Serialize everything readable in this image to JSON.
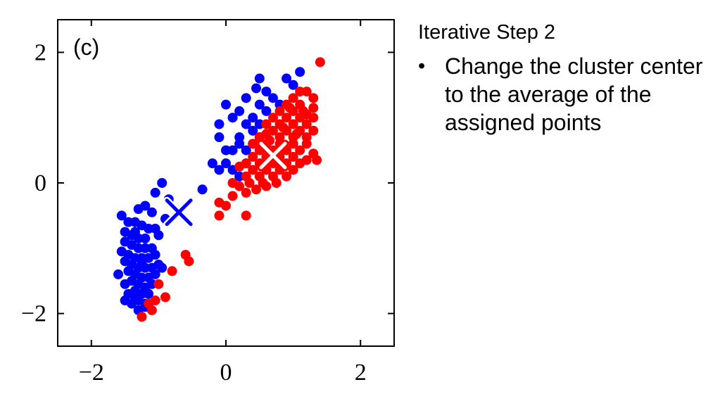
{
  "side": {
    "title": "Iterative Step 2",
    "bullet_marker": "•",
    "bullet_text": "Change the cluster center to the average of the assigned points"
  },
  "chart_data": {
    "type": "scatter",
    "panel_label": "(c)",
    "xlim": [
      -2.5,
      2.5
    ],
    "ylim": [
      -2.5,
      2.5
    ],
    "xticks": [
      -2,
      0,
      2
    ],
    "yticks": [
      -2,
      0,
      2
    ],
    "xtick_labels": [
      "−2",
      "0",
      "2"
    ],
    "ytick_labels": [
      "−2",
      "0",
      "2"
    ],
    "grid": false,
    "series": [
      {
        "color": "#0000ff",
        "points": [
          [
            0.5,
            1.6
          ],
          [
            0.6,
            1.4
          ],
          [
            0.9,
            1.6
          ],
          [
            1.0,
            1.5
          ],
          [
            1.1,
            1.7
          ],
          [
            0.3,
            1.3
          ],
          [
            0.5,
            1.2
          ],
          [
            0.2,
            1.1
          ],
          [
            0.4,
            1.0
          ],
          [
            0.6,
            1.1
          ],
          [
            0.0,
            1.2
          ],
          [
            0.1,
            1.0
          ],
          [
            0.3,
            0.9
          ],
          [
            -0.1,
            0.9
          ],
          [
            0.2,
            0.7
          ],
          [
            0.4,
            0.8
          ],
          [
            0.5,
            0.9
          ],
          [
            0.2,
            0.6
          ],
          [
            0.3,
            0.5
          ],
          [
            0.1,
            0.5
          ],
          [
            0.0,
            0.5
          ],
          [
            -0.1,
            0.7
          ],
          [
            0.4,
            0.6
          ],
          [
            0.5,
            0.7
          ],
          [
            -0.2,
            0.3
          ],
          [
            0.0,
            0.3
          ],
          [
            0.1,
            0.2
          ],
          [
            0.2,
            0.1
          ],
          [
            -0.1,
            0.2
          ],
          [
            0.3,
            0.3
          ],
          [
            0.7,
            1.3
          ],
          [
            0.8,
            1.2
          ],
          [
            0.45,
            1.45
          ],
          [
            -0.35,
            -0.1
          ],
          [
            -0.95,
            0.0
          ],
          [
            -1.05,
            -0.15
          ],
          [
            -0.85,
            -0.25
          ],
          [
            -1.2,
            -0.35
          ],
          [
            -1.3,
            -0.4
          ],
          [
            -1.1,
            -0.45
          ],
          [
            -1.55,
            -0.5
          ],
          [
            -0.9,
            -0.55
          ],
          [
            -1.45,
            -0.6
          ],
          [
            -1.35,
            -0.6
          ],
          [
            -1.25,
            -0.65
          ],
          [
            -1.15,
            -0.7
          ],
          [
            -1.05,
            -0.7
          ],
          [
            -1.5,
            -0.75
          ],
          [
            -1.4,
            -0.8
          ],
          [
            -1.3,
            -0.85
          ],
          [
            -1.2,
            -0.85
          ],
          [
            -1.0,
            -0.8
          ],
          [
            -1.5,
            -0.9
          ],
          [
            -1.4,
            -0.95
          ],
          [
            -1.3,
            -1.0
          ],
          [
            -1.2,
            -1.0
          ],
          [
            -1.1,
            -1.0
          ],
          [
            -1.55,
            -1.05
          ],
          [
            -1.45,
            -1.1
          ],
          [
            -1.35,
            -1.15
          ],
          [
            -1.25,
            -1.15
          ],
          [
            -1.15,
            -1.15
          ],
          [
            -1.05,
            -1.1
          ],
          [
            -1.5,
            -1.2
          ],
          [
            -1.4,
            -1.25
          ],
          [
            -1.3,
            -1.3
          ],
          [
            -1.2,
            -1.3
          ],
          [
            -1.1,
            -1.3
          ],
          [
            -1.0,
            -1.25
          ],
          [
            -1.45,
            -1.35
          ],
          [
            -1.35,
            -1.4
          ],
          [
            -1.25,
            -1.45
          ],
          [
            -1.15,
            -1.45
          ],
          [
            -1.6,
            -1.4
          ],
          [
            -1.05,
            -1.4
          ],
          [
            -0.95,
            -1.3
          ],
          [
            -1.4,
            -1.5
          ],
          [
            -1.3,
            -1.55
          ],
          [
            -1.2,
            -1.6
          ],
          [
            -1.1,
            -1.55
          ],
          [
            -1.5,
            -1.55
          ],
          [
            -1.35,
            -1.65
          ],
          [
            -1.25,
            -1.7
          ],
          [
            -1.15,
            -1.7
          ],
          [
            -1.45,
            -1.7
          ],
          [
            -1.3,
            -1.8
          ],
          [
            -1.2,
            -1.85
          ],
          [
            -1.4,
            -1.85
          ],
          [
            -1.3,
            -1.95
          ],
          [
            -1.2,
            -1.9
          ],
          [
            -1.5,
            -1.8
          ],
          [
            -1.35,
            -1.75
          ],
          [
            -1.25,
            -1.25
          ],
          [
            -1.35,
            -0.75
          ]
        ]
      },
      {
        "color": "#ff0000",
        "points": [
          [
            1.4,
            1.85
          ],
          [
            1.1,
            1.4
          ],
          [
            1.2,
            1.4
          ],
          [
            1.0,
            1.3
          ],
          [
            1.3,
            1.3
          ],
          [
            0.9,
            1.2
          ],
          [
            1.1,
            1.2
          ],
          [
            1.3,
            1.15
          ],
          [
            0.8,
            1.1
          ],
          [
            1.0,
            1.1
          ],
          [
            1.2,
            1.05
          ],
          [
            0.7,
            1.0
          ],
          [
            0.9,
            1.0
          ],
          [
            1.1,
            1.0
          ],
          [
            1.3,
            1.0
          ],
          [
            0.6,
            0.9
          ],
          [
            0.8,
            0.9
          ],
          [
            1.0,
            0.9
          ],
          [
            1.2,
            0.9
          ],
          [
            0.7,
            0.8
          ],
          [
            0.9,
            0.8
          ],
          [
            1.1,
            0.8
          ],
          [
            1.3,
            0.8
          ],
          [
            0.5,
            0.7
          ],
          [
            0.6,
            0.75
          ],
          [
            0.8,
            0.7
          ],
          [
            1.0,
            0.7
          ],
          [
            1.2,
            0.7
          ],
          [
            0.4,
            0.6
          ],
          [
            0.6,
            0.6
          ],
          [
            0.8,
            0.6
          ],
          [
            1.0,
            0.6
          ],
          [
            1.2,
            0.6
          ],
          [
            0.5,
            0.5
          ],
          [
            0.7,
            0.5
          ],
          [
            0.9,
            0.5
          ],
          [
            1.1,
            0.5
          ],
          [
            1.3,
            0.45
          ],
          [
            1.35,
            0.35
          ],
          [
            0.4,
            0.4
          ],
          [
            0.6,
            0.4
          ],
          [
            0.8,
            0.4
          ],
          [
            1.0,
            0.4
          ],
          [
            1.2,
            0.35
          ],
          [
            0.3,
            0.3
          ],
          [
            0.5,
            0.3
          ],
          [
            0.7,
            0.3
          ],
          [
            0.9,
            0.3
          ],
          [
            1.1,
            0.3
          ],
          [
            0.2,
            0.25
          ],
          [
            0.4,
            0.2
          ],
          [
            0.6,
            0.2
          ],
          [
            0.8,
            0.2
          ],
          [
            1.0,
            0.2
          ],
          [
            0.3,
            0.1
          ],
          [
            0.5,
            0.1
          ],
          [
            0.7,
            0.1
          ],
          [
            0.9,
            0.1
          ],
          [
            0.35,
            0.0
          ],
          [
            0.55,
            0.0
          ],
          [
            0.75,
            0.0
          ],
          [
            0.1,
            0.0
          ],
          [
            0.2,
            -0.05
          ],
          [
            0.45,
            -0.1
          ],
          [
            0.6,
            -0.05
          ],
          [
            0.3,
            -0.15
          ],
          [
            0.1,
            -0.2
          ],
          [
            -0.1,
            -0.3
          ],
          [
            0.0,
            -0.35
          ],
          [
            0.3,
            -0.5
          ],
          [
            -0.1,
            -0.5
          ],
          [
            -0.6,
            -1.1
          ],
          [
            -0.55,
            -1.2
          ],
          [
            -0.8,
            -1.35
          ],
          [
            -1.0,
            -1.55
          ],
          [
            -0.9,
            -1.75
          ],
          [
            -1.05,
            -1.8
          ],
          [
            -1.15,
            -1.85
          ],
          [
            -1.1,
            -1.95
          ],
          [
            -1.25,
            -2.05
          ],
          [
            0.95,
            1.15
          ],
          [
            1.05,
            0.75
          ],
          [
            1.15,
            1.1
          ],
          [
            0.85,
            0.85
          ],
          [
            0.65,
            0.65
          ]
        ]
      }
    ],
    "centroids": [
      {
        "x": -0.7,
        "y": -0.45,
        "color": "#0000ff"
      },
      {
        "x": 0.7,
        "y": 0.42,
        "color": "#ff0000"
      }
    ]
  }
}
